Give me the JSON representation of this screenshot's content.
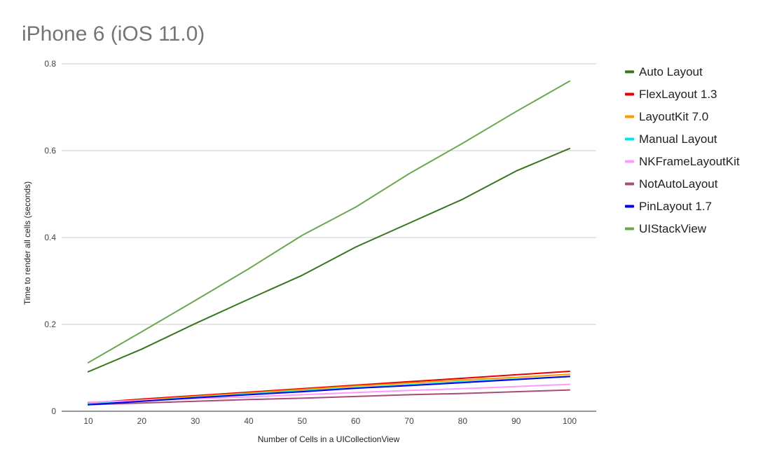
{
  "chart_data": {
    "type": "line",
    "title": "iPhone 6 (iOS 11.0)",
    "xlabel": "Number of Cells in a UICollectionView",
    "ylabel": "Time to  render  all cells (seconds)",
    "x": [
      10,
      20,
      30,
      40,
      50,
      60,
      70,
      80,
      90,
      100
    ],
    "x_ticks": [
      "10",
      "20",
      "30",
      "40",
      "50",
      "60",
      "70",
      "80",
      "90",
      "100"
    ],
    "ylim": [
      0,
      0.8
    ],
    "y_ticks": [
      "0",
      "0.2",
      "0.4",
      "0.6",
      "0.8"
    ],
    "grid": true,
    "legend_position": "right",
    "series": [
      {
        "name": "Auto Layout",
        "color": "#38761d",
        "values": [
          0.091,
          0.143,
          0.202,
          0.258,
          0.313,
          0.378,
          0.433,
          0.488,
          0.553,
          0.605
        ]
      },
      {
        "name": "FlexLayout 1.3",
        "color": "#e60000",
        "values": [
          0.019,
          0.028,
          0.036,
          0.044,
          0.052,
          0.06,
          0.068,
          0.076,
          0.084,
          0.092
        ]
      },
      {
        "name": "LayoutKit 7.0",
        "color": "#ff9900",
        "values": [
          0.018,
          0.026,
          0.034,
          0.042,
          0.05,
          0.058,
          0.065,
          0.072,
          0.078,
          0.085
        ]
      },
      {
        "name": "Manual Layout",
        "color": "#00e5ee",
        "values": [
          0.017,
          0.024,
          0.032,
          0.04,
          0.047,
          0.054,
          0.061,
          0.068,
          0.074,
          0.08
        ]
      },
      {
        "name": "NKFrameLayoutKit",
        "color": "#ff99ff",
        "values": [
          0.021,
          0.025,
          0.029,
          0.033,
          0.038,
          0.043,
          0.048,
          0.052,
          0.057,
          0.062
        ]
      },
      {
        "name": "NotAutoLayout",
        "color": "#a64d79",
        "values": [
          0.015,
          0.019,
          0.023,
          0.027,
          0.03,
          0.034,
          0.038,
          0.041,
          0.045,
          0.049
        ]
      },
      {
        "name": "PinLayout 1.7",
        "color": "#0000e6",
        "values": [
          0.015,
          0.023,
          0.031,
          0.038,
          0.045,
          0.053,
          0.059,
          0.066,
          0.073,
          0.08
        ]
      },
      {
        "name": "UIStackView",
        "color": "#6aa84f",
        "values": [
          0.112,
          0.183,
          0.255,
          0.328,
          0.405,
          0.47,
          0.547,
          0.617,
          0.69,
          0.76
        ]
      }
    ]
  }
}
